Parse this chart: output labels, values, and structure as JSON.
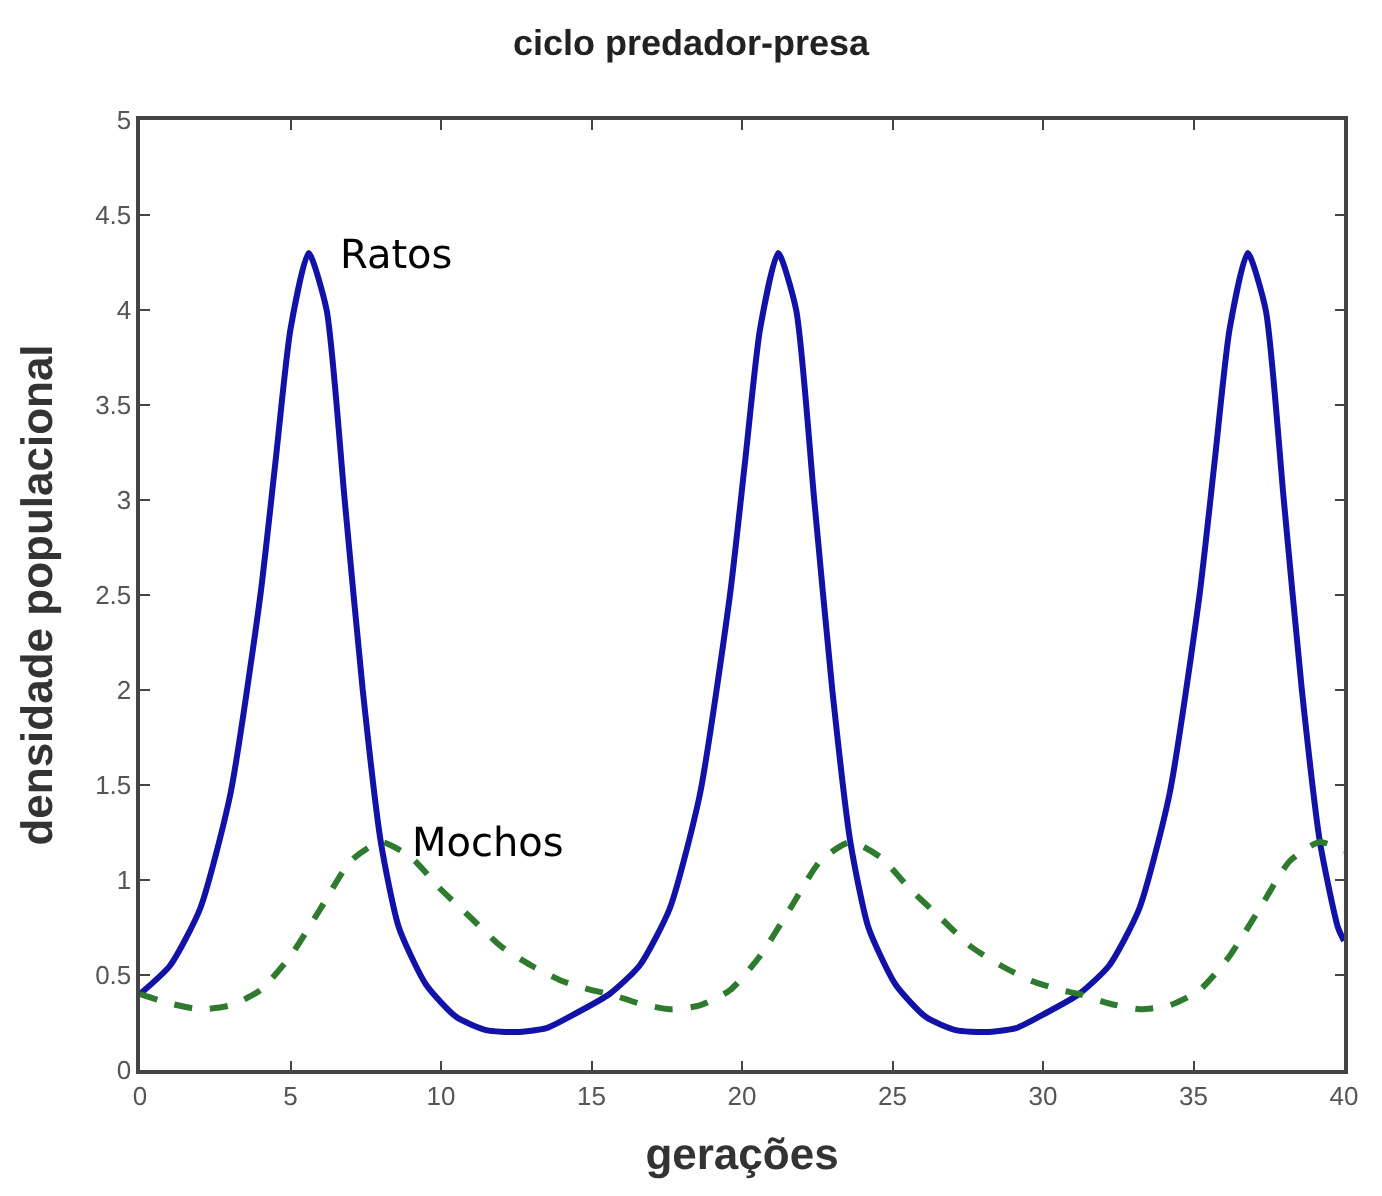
{
  "chart_data": {
    "type": "line",
    "title": "ciclo predador-presa",
    "xlabel": "gerações",
    "ylabel": "densidade populacional",
    "xlim": [
      0,
      40
    ],
    "xticks": [
      0,
      5,
      10,
      15,
      20,
      25,
      30,
      35,
      40
    ],
    "ylim": [
      0,
      5
    ],
    "yticks": [
      0,
      0.5,
      1,
      1.5,
      2,
      2.5,
      3,
      3.5,
      4,
      4.5,
      5
    ],
    "legend": false,
    "marker": "none",
    "series": [
      {
        "name": "Ratos",
        "color": "#1212a8",
        "line_style": "solid",
        "x": [
          0,
          1,
          2,
          3,
          4,
          4.5,
          5,
          5.6,
          6.2,
          6.8,
          7.4,
          8,
          8.6,
          9.5,
          10.5,
          11.5,
          12.5,
          13.5,
          14.5,
          15.6,
          16.6,
          17.6,
          18.6,
          19.6,
          20.1,
          20.6,
          21.2,
          21.8,
          22.4,
          23,
          23.6,
          24.2,
          25.1,
          26.1,
          27.1,
          28.1,
          29.1,
          30.1,
          31.2,
          32.2,
          33.2,
          34.2,
          35.2,
          35.7,
          36.2,
          36.8,
          37.4,
          38,
          38.6,
          39.2,
          39.8,
          40
        ],
        "values": [
          0.4,
          0.55,
          0.85,
          1.45,
          2.5,
          3.2,
          3.9,
          4.3,
          4.0,
          3.0,
          2.0,
          1.2,
          0.75,
          0.45,
          0.28,
          0.21,
          0.2,
          0.22,
          0.3,
          0.4,
          0.55,
          0.85,
          1.45,
          2.5,
          3.2,
          3.9,
          4.3,
          4.0,
          3.0,
          2.0,
          1.2,
          0.75,
          0.45,
          0.28,
          0.21,
          0.2,
          0.22,
          0.3,
          0.4,
          0.55,
          0.85,
          1.45,
          2.5,
          3.2,
          3.9,
          4.3,
          4.0,
          3.0,
          2.0,
          1.2,
          0.75,
          0.68
        ]
      },
      {
        "name": "Mochos",
        "color": "#2e7a2e",
        "line_style": "dashed",
        "x": [
          0,
          1,
          2,
          3,
          4,
          5,
          6,
          7,
          8,
          9,
          10,
          11,
          12,
          13,
          14,
          15,
          15.6,
          16.6,
          17.6,
          18.6,
          19.6,
          20.6,
          21.6,
          22.6,
          23.6,
          24.6,
          25.6,
          26.6,
          27.6,
          28.6,
          29.6,
          30.6,
          31.2,
          32.2,
          33.2,
          34.2,
          35.2,
          36.2,
          37.2,
          38.2,
          39.2,
          40
        ],
        "values": [
          0.4,
          0.35,
          0.32,
          0.34,
          0.42,
          0.6,
          0.85,
          1.1,
          1.2,
          1.12,
          0.95,
          0.8,
          0.65,
          0.55,
          0.47,
          0.42,
          0.4,
          0.35,
          0.32,
          0.34,
          0.42,
          0.6,
          0.85,
          1.1,
          1.2,
          1.12,
          0.95,
          0.8,
          0.65,
          0.55,
          0.47,
          0.42,
          0.4,
          0.35,
          0.32,
          0.34,
          0.42,
          0.6,
          0.85,
          1.1,
          1.2,
          1.15
        ]
      }
    ]
  }
}
